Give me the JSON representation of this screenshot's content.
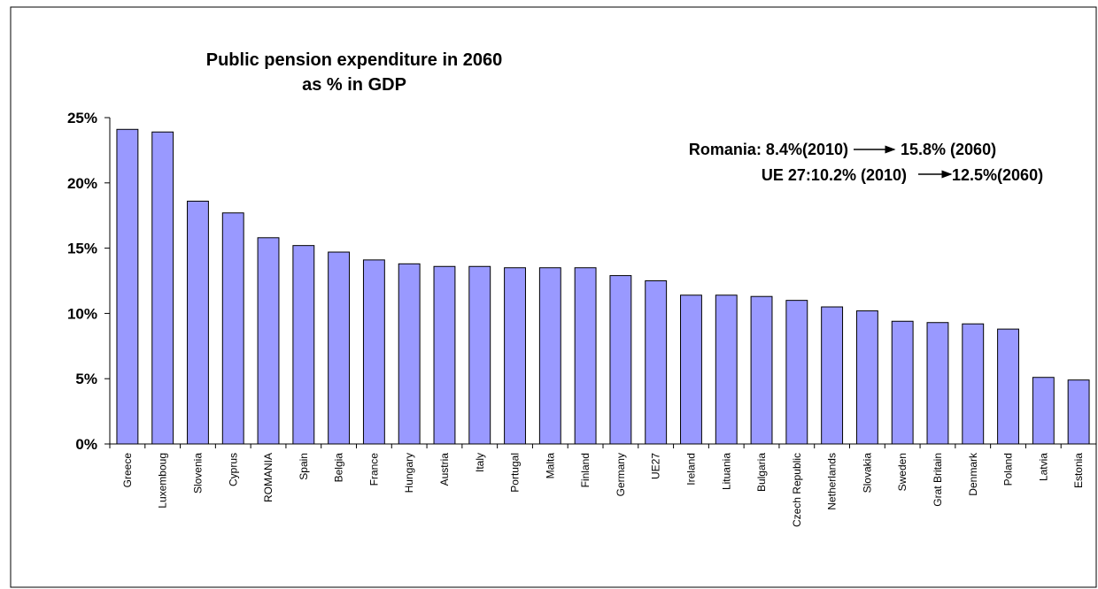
{
  "chart_data": {
    "type": "bar",
    "title": [
      "Public pension expenditure in 2060",
      "as % in GDP"
    ],
    "categories": [
      "Greece",
      "Luxemboug",
      "Slovenia",
      "Cyprus",
      "ROMANIA",
      "Spain",
      "Belgia",
      "France",
      "Hungary",
      "Austria",
      "Italy",
      "Portugal",
      "Malta",
      "Finland",
      "Germany",
      "UE27",
      "Ireland",
      "Lituania",
      "Bulgaria",
      "Czech Republic",
      "Netherlands",
      "Slovakia",
      "Sweden",
      "Grat Britain",
      "Denmark",
      "Poland",
      "Latvia",
      "Estonia"
    ],
    "values": [
      24.1,
      23.9,
      18.6,
      17.7,
      15.8,
      15.2,
      14.7,
      14.1,
      13.8,
      13.6,
      13.6,
      13.5,
      13.5,
      13.5,
      12.9,
      12.5,
      11.4,
      11.4,
      11.3,
      11.0,
      10.5,
      10.2,
      9.4,
      9.3,
      9.2,
      8.8,
      5.1,
      4.9
    ],
    "color": "#9999ff",
    "ylim": [
      0,
      25
    ],
    "yticks": [
      {
        "value": 0,
        "label": "0%"
      },
      {
        "value": 5,
        "label": "5%"
      },
      {
        "value": 10,
        "label": "10%"
      },
      {
        "value": 15,
        "label": "15%"
      },
      {
        "value": 20,
        "label": "20%"
      },
      {
        "value": 25,
        "label": "25%"
      }
    ],
    "annotations": [
      [
        "Romania: 8.4%(2010)",
        "15.8% (2060)"
      ],
      [
        "UE 27:10.2% (2010)",
        "12.5%(2060)"
      ]
    ]
  }
}
